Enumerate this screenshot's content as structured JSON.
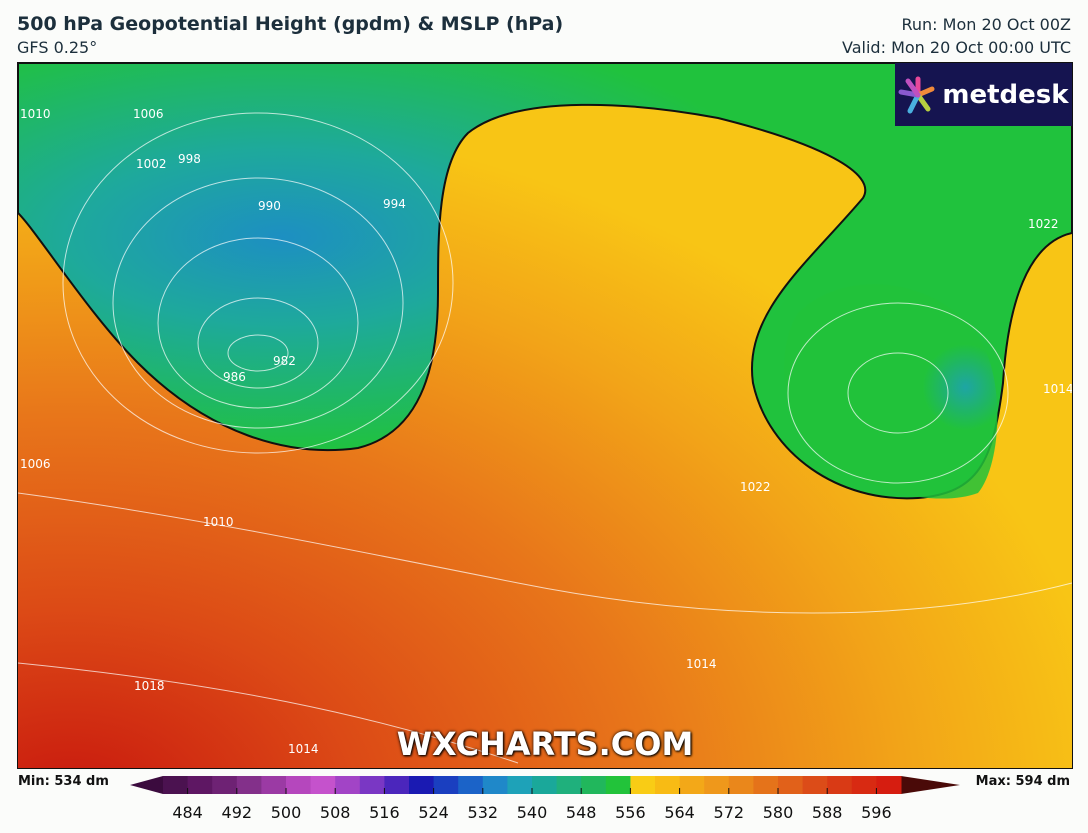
{
  "header": {
    "title": "500 hPa Geopotential Height (gpdm) & MSLP (hPa)",
    "model": "GFS 0.25°",
    "run": "Run: Mon 20 Oct 00Z",
    "valid": "Valid: Mon 20 Oct 00:00 UTC"
  },
  "logo": {
    "text": "metdesk"
  },
  "watermark": "WXCHARTS.COM",
  "isobar_labels": [
    "1010",
    "1006",
    "1002",
    "998",
    "990",
    "994",
    "986",
    "982",
    "1006",
    "1010",
    "1018",
    "1014",
    "1022",
    "1014",
    "1014",
    "1022"
  ],
  "colorbar": {
    "min_label": "Min: 534 dm",
    "max_label": "Max: 594 dm",
    "range": [
      480,
      600
    ],
    "step": 4,
    "ticks": [
      "484",
      "492",
      "500",
      "508",
      "516",
      "524",
      "532",
      "540",
      "548",
      "556",
      "564",
      "572",
      "580",
      "588",
      "596"
    ],
    "colors": [
      "#4b1250",
      "#5e1763",
      "#6e2274",
      "#83308a",
      "#9b3aa4",
      "#b547bd",
      "#c552cc",
      "#a244c6",
      "#7a37c4",
      "#4b26bc",
      "#1a1ab2",
      "#1a3fc0",
      "#1b63c8",
      "#1f88c9",
      "#1ea2b8",
      "#1aa89a",
      "#1fb07c",
      "#21b75c",
      "#22c33a",
      "#f9cc15",
      "#f8bb14",
      "#f3a818",
      "#ef981b",
      "#ea871b",
      "#e5731a",
      "#e1611a",
      "#dc4c18",
      "#d93a15",
      "#d82a12",
      "#d61d10"
    ],
    "under_color": "#3b0b3e",
    "over_color": "#4a0a08"
  }
}
